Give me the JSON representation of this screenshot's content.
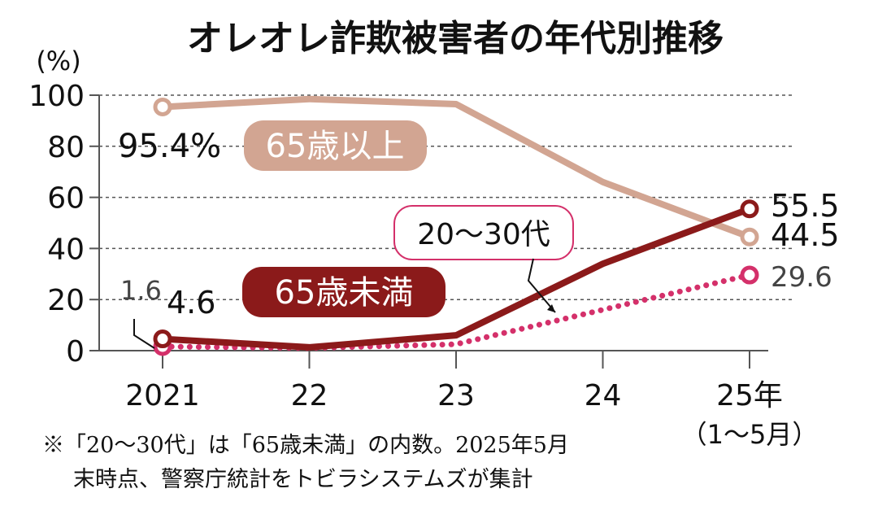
{
  "chart_data": {
    "type": "line",
    "title": "オレオレ詐欺被害者の年代別推移",
    "ylabel": "(%)",
    "ylim": [
      0,
      100
    ],
    "yticks": [
      "0",
      "20",
      "40",
      "60",
      "80",
      "100"
    ],
    "categories": [
      "2021",
      "22",
      "23",
      "24",
      "25年"
    ],
    "category_sub": {
      "4": "（1〜5月）"
    },
    "grid": true,
    "series": [
      {
        "name": "65歳以上",
        "values": [
          95.4,
          98.5,
          96.5,
          66,
          44.5
        ],
        "color": "#d2a592",
        "style": "solid",
        "labels": {
          "first": "95.4%",
          "last": "44.5"
        }
      },
      {
        "name": "65歳未満",
        "values": [
          4.6,
          1.3,
          6,
          34,
          55.5
        ],
        "color": "#8b1a1a",
        "style": "solid",
        "labels": {
          "first": "4.6",
          "last": "55.5"
        }
      },
      {
        "name": "20〜30代",
        "values": [
          1.6,
          1.0,
          2.5,
          16,
          29.6
        ],
        "color": "#d4306a",
        "style": "dotted",
        "labels": {
          "first": "1.6",
          "last": "29.6"
        }
      }
    ],
    "footnote": [
      "※「20〜30代」は「65歳未満」の内数。2025年5月",
      "末時点、警察庁統計をトビラシステムズが集計"
    ]
  }
}
